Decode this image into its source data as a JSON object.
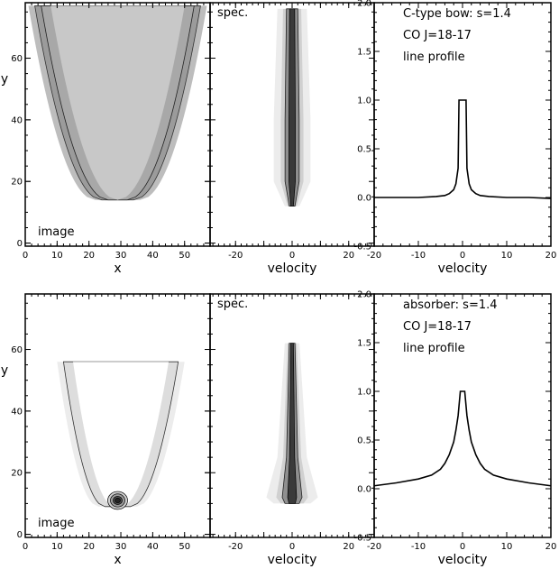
{
  "chart_data": [
    {
      "type": "heatmap",
      "panel": "top-image",
      "annotation": "image",
      "xlabel": "x",
      "ylabel": "y",
      "xlim": [
        0,
        58
      ],
      "ylim": [
        -1,
        78
      ],
      "xticks": [
        0,
        10,
        20,
        30,
        40,
        50
      ],
      "yticks": [
        0,
        20,
        40,
        60
      ],
      "shape": "bow",
      "bow": {
        "apex_x": 29,
        "apex_y": 14,
        "top_y": 77,
        "arm_center_at_top": [
          8,
          50
        ],
        "arm_width": 6
      },
      "color": "gray"
    },
    {
      "type": "heatmap",
      "panel": "top-spec",
      "annotation": "spec.",
      "xlabel": "velocity",
      "xlim": [
        -29,
        29
      ],
      "ylim": [
        -1,
        78
      ],
      "xticks": [
        -20,
        -10,
        0,
        10,
        20
      ],
      "xtick_labels": [
        "-20",
        "0",
        "20"
      ],
      "spectral_profile": [
        {
          "y": 12,
          "half_width": 1.0
        },
        {
          "y": 20,
          "half_width": 2.5
        },
        {
          "y": 40,
          "half_width": 2.5
        },
        {
          "y": 76,
          "half_width": 2.0
        }
      ]
    },
    {
      "type": "line",
      "panel": "top-profile",
      "annotation": [
        "C-type bow: s=1.4",
        "CO J=18-17",
        "line profile"
      ],
      "xlabel": "velocity",
      "xlim": [
        -20,
        20
      ],
      "ylim": [
        -0.5,
        2.0
      ],
      "xticks": [
        -20,
        -10,
        0,
        10,
        20
      ],
      "yticks": [
        -0.5,
        0.0,
        0.5,
        1.0,
        1.5,
        2.0
      ],
      "ytick_labels": [
        "-0.5",
        "0.0",
        "0.5",
        "1.0",
        "1.5",
        "2.0"
      ],
      "x": [
        -20,
        -15,
        -10,
        -6,
        -4,
        -3,
        -2,
        -1.5,
        -1,
        -0.8,
        -0.5,
        0,
        0.5,
        0.8,
        1,
        1.5,
        2,
        3,
        4,
        6,
        10,
        15,
        20
      ],
      "y": [
        0.0,
        0.0,
        0.0,
        0.01,
        0.02,
        0.04,
        0.08,
        0.14,
        0.3,
        1.0,
        1.0,
        1.0,
        1.0,
        1.0,
        0.3,
        0.14,
        0.08,
        0.04,
        0.02,
        0.01,
        0.0,
        0.0,
        -0.01
      ]
    },
    {
      "type": "heatmap",
      "panel": "bottom-image",
      "annotation": "image",
      "xlabel": "x",
      "ylabel": "y",
      "xlim": [
        0,
        58
      ],
      "ylim": [
        -1,
        78
      ],
      "xticks": [
        0,
        10,
        20,
        30,
        40,
        50
      ],
      "yticks": [
        0,
        20,
        40,
        60
      ],
      "shape": "bow",
      "bow": {
        "apex_x": 29,
        "apex_y": 9,
        "top_y": 56,
        "arm_center_at_top": [
          16,
          44
        ],
        "arm_width": 5
      },
      "core": {
        "x": 29,
        "y": 11
      },
      "color": "gray"
    },
    {
      "type": "heatmap",
      "panel": "bottom-spec",
      "annotation": "spec.",
      "xlabel": "velocity",
      "xlim": [
        -29,
        29
      ],
      "ylim": [
        -1,
        78
      ],
      "xticks": [
        -20,
        -10,
        0,
        10,
        20
      ],
      "xtick_labels": [
        "-20",
        "0",
        "20"
      ],
      "spectral_profile": [
        {
          "y": 10,
          "half_width": 2.5
        },
        {
          "y": 12,
          "half_width": 3.5
        },
        {
          "y": 25,
          "half_width": 2.0
        },
        {
          "y": 62,
          "half_width": 1.0
        }
      ]
    },
    {
      "type": "line",
      "panel": "bottom-profile",
      "annotation": [
        "absorber: s=1.4",
        "CO J=18-17",
        "line profile"
      ],
      "xlabel": "velocity",
      "xlim": [
        -20,
        20
      ],
      "ylim": [
        -0.5,
        2.0
      ],
      "xticks": [
        -20,
        -10,
        0,
        10,
        20
      ],
      "yticks": [
        -0.5,
        0.0,
        0.5,
        1.0,
        1.5,
        2.0
      ],
      "ytick_labels": [
        "-0.5",
        "0.0",
        "0.5",
        "1.0",
        "1.5",
        "2.0"
      ],
      "x": [
        -20,
        -15,
        -10,
        -7,
        -5,
        -4,
        -3,
        -2,
        -1.5,
        -1,
        -0.7,
        -0.5,
        0,
        0.5,
        0.7,
        1,
        1.5,
        2,
        3,
        4,
        5,
        7,
        10,
        15,
        20
      ],
      "y": [
        0.03,
        0.06,
        0.1,
        0.14,
        0.2,
        0.26,
        0.35,
        0.48,
        0.6,
        0.75,
        0.9,
        1.0,
        1.0,
        1.0,
        0.9,
        0.75,
        0.6,
        0.48,
        0.35,
        0.26,
        0.2,
        0.14,
        0.1,
        0.06,
        0.03
      ]
    }
  ]
}
